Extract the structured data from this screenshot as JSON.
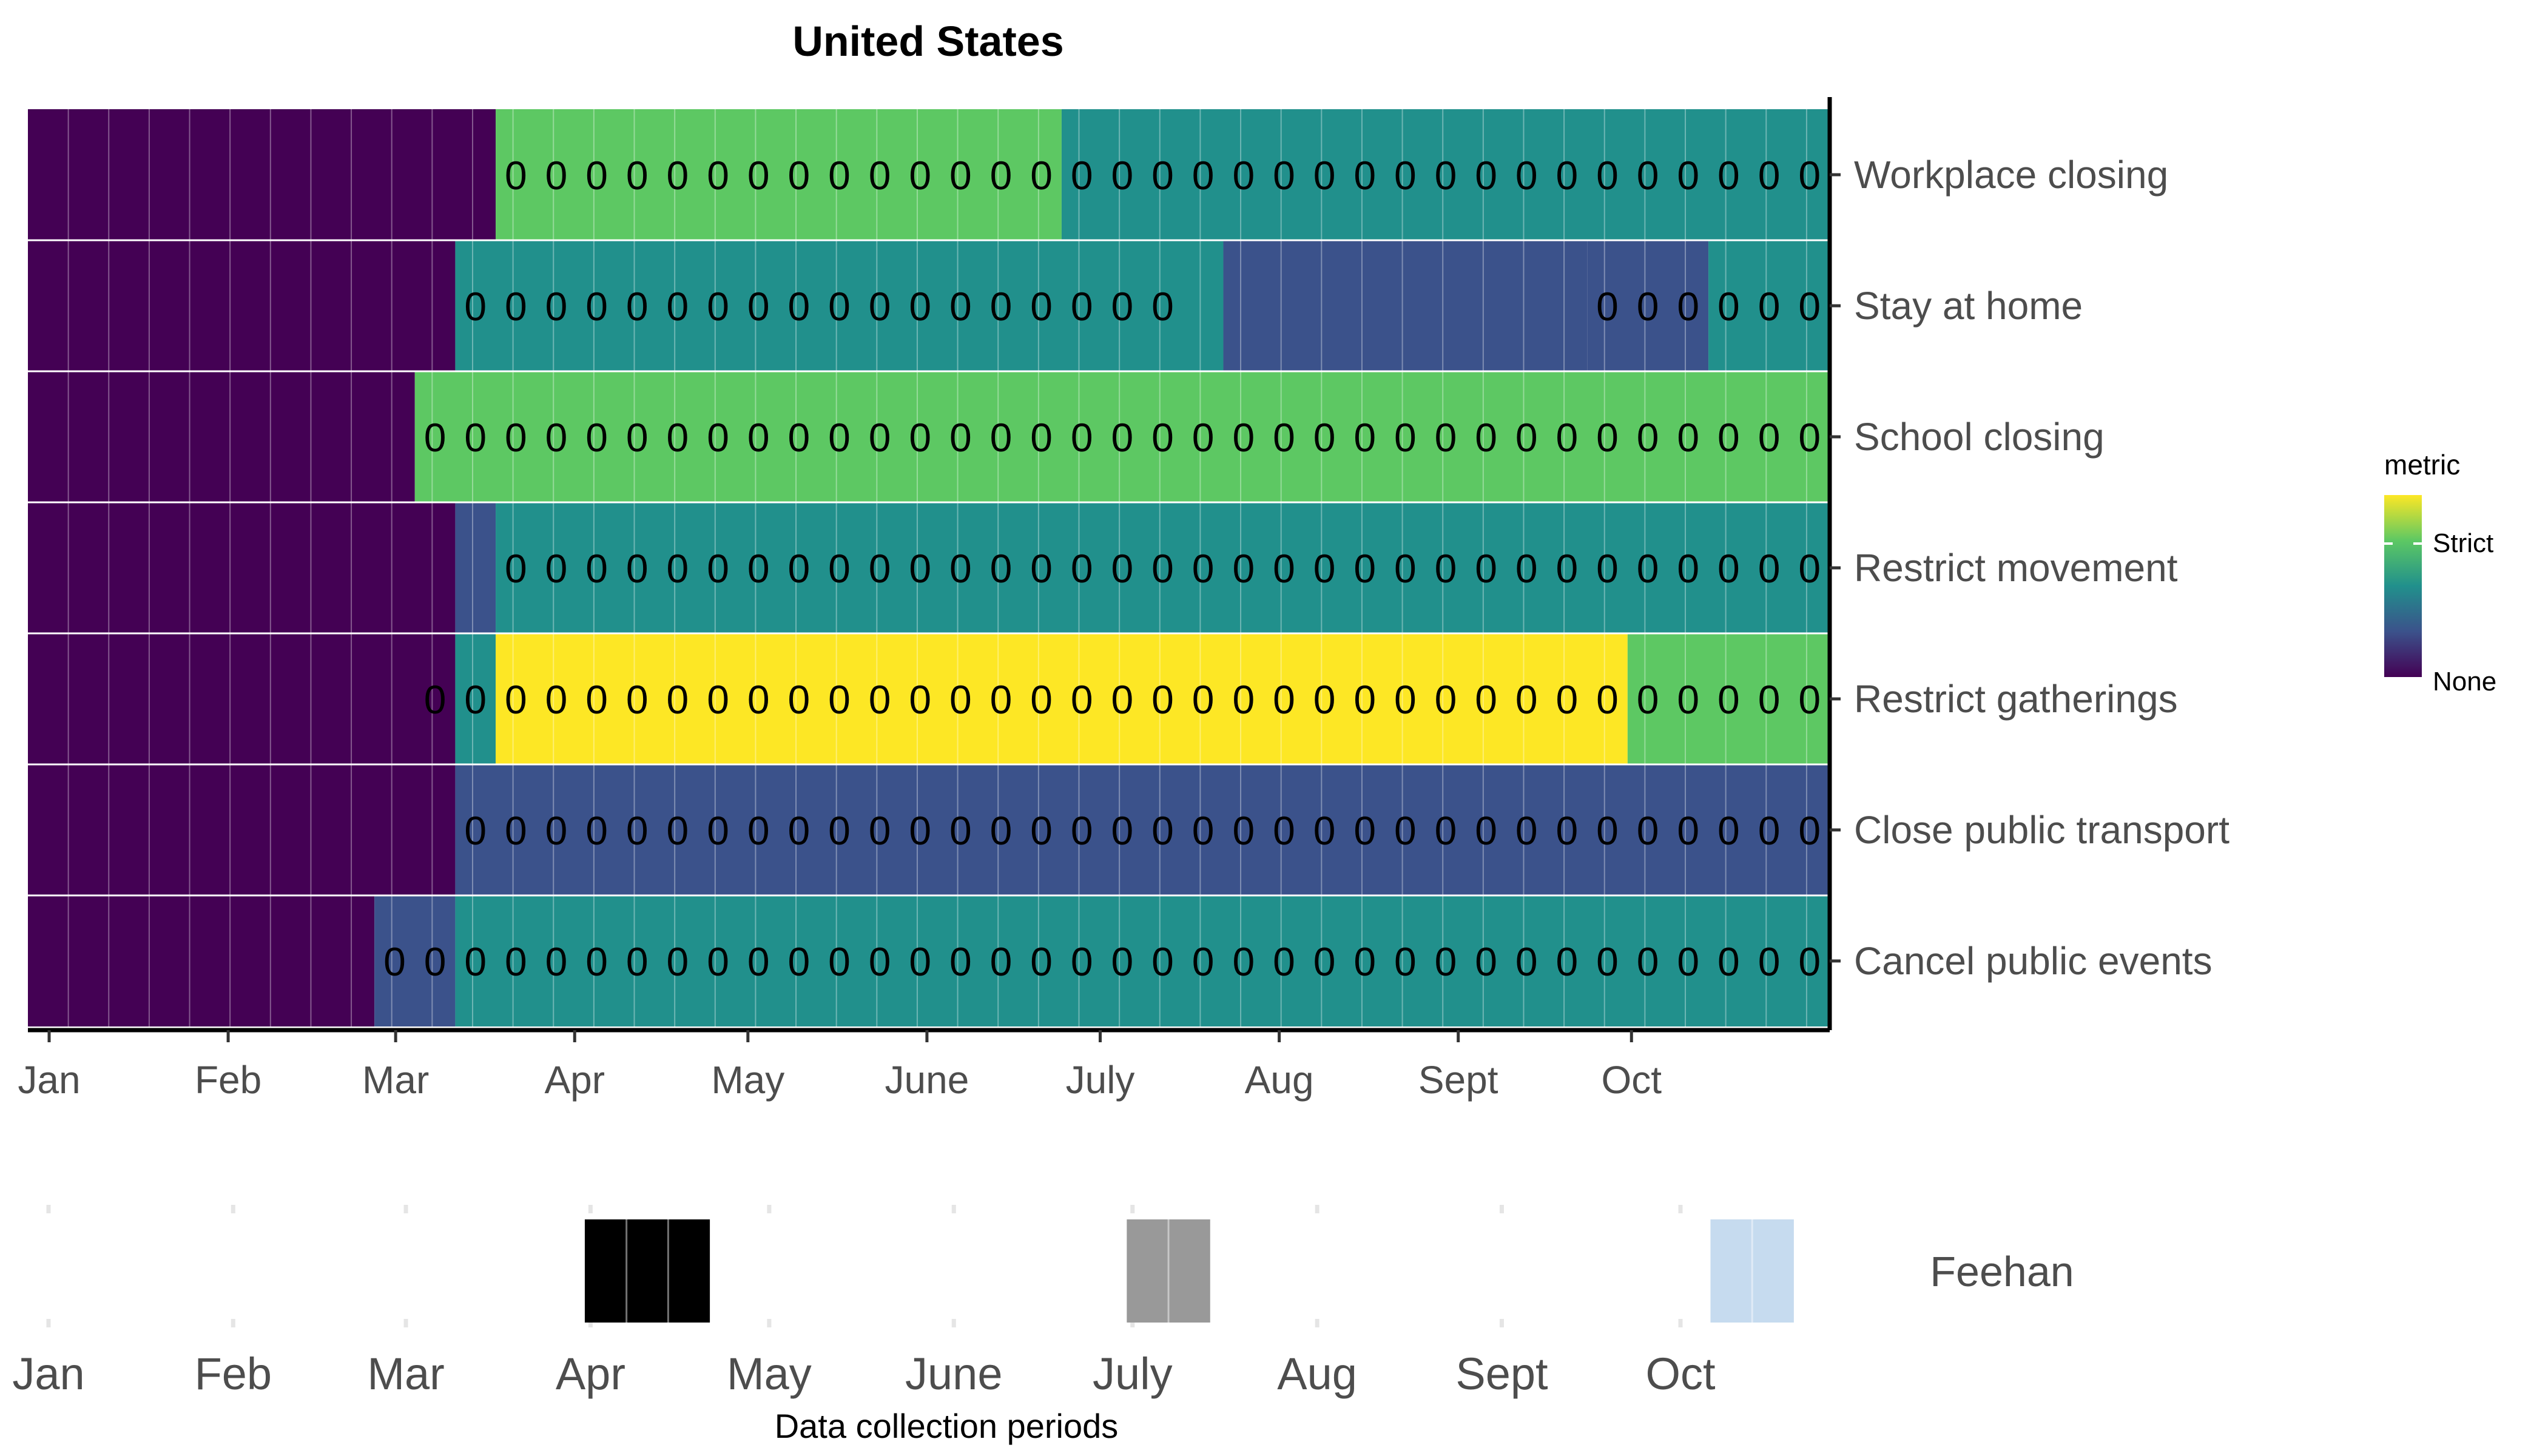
{
  "colors": {
    "palette": {
      "0": "#440154",
      "1": "#3B528B",
      "2": "#21908C",
      "3": "#5DC863",
      "4": "#FDE725"
    },
    "period_black": "#000000",
    "period_gray": "#999999",
    "period_lightblue": "#C6DBEF"
  },
  "chart_data": [
    {
      "type": "heatmap",
      "title": "United States",
      "x_unit": "week",
      "x_range": [
        "2020-01-01",
        "2020-11-08"
      ],
      "month_labels": [
        "Jan",
        "Feb",
        "Mar",
        "Apr",
        "May",
        "June",
        "July",
        "Aug",
        "Sept",
        "Oct"
      ],
      "rows": [
        {
          "name": "Workplace closing",
          "segments": [
            {
              "from": "2020-01-01",
              "to": "2020-03-22",
              "level": 0
            },
            {
              "from": "2020-03-22",
              "to": "2020-06-28",
              "level": 3
            },
            {
              "from": "2020-06-28",
              "to": "2020-11-08",
              "level": 2
            }
          ],
          "zero_labels": [
            "2020-03-29",
            "2020-11-08"
          ]
        },
        {
          "name": "Stay at home",
          "segments": [
            {
              "from": "2020-01-01",
              "to": "2020-03-15",
              "level": 0
            },
            {
              "from": "2020-03-15",
              "to": "2020-07-26",
              "level": 2
            },
            {
              "from": "2020-07-26",
              "to": "2020-09-27",
              "level": 1
            },
            {
              "from": "2020-09-27",
              "to": "2020-10-18",
              "level": 1
            },
            {
              "from": "2020-10-18",
              "to": "2020-11-08",
              "level": 2
            }
          ],
          "zero_labels": [
            "2020-03-22",
            "2020-07-19"
          ],
          "zero_labels_2": [
            "2020-10-04",
            "2020-11-08"
          ]
        },
        {
          "name": "School closing",
          "segments": [
            {
              "from": "2020-01-01",
              "to": "2020-03-08",
              "level": 0
            },
            {
              "from": "2020-03-08",
              "to": "2020-11-08",
              "level": 3
            }
          ],
          "zero_labels": [
            "2020-03-15",
            "2020-11-08"
          ]
        },
        {
          "name": "Restrict movement",
          "segments": [
            {
              "from": "2020-01-01",
              "to": "2020-03-15",
              "level": 0
            },
            {
              "from": "2020-03-15",
              "to": "2020-03-22",
              "level": 1
            },
            {
              "from": "2020-03-22",
              "to": "2020-11-08",
              "level": 2
            }
          ],
          "zero_labels": [
            "2020-03-29",
            "2020-11-08"
          ]
        },
        {
          "name": "Restrict gatherings",
          "segments": [
            {
              "from": "2020-01-01",
              "to": "2020-03-15",
              "level": 0
            },
            {
              "from": "2020-03-15",
              "to": "2020-03-22",
              "level": 2
            },
            {
              "from": "2020-03-22",
              "to": "2020-10-04",
              "level": 4
            },
            {
              "from": "2020-10-04",
              "to": "2020-11-08",
              "level": 3
            }
          ],
          "zero_labels": [
            "2020-03-15",
            "2020-11-08"
          ]
        },
        {
          "name": "Close public transport",
          "segments": [
            {
              "from": "2020-01-01",
              "to": "2020-03-15",
              "level": 0
            },
            {
              "from": "2020-03-15",
              "to": "2020-11-08",
              "level": 1
            }
          ],
          "zero_labels": [
            "2020-03-22",
            "2020-11-08"
          ]
        },
        {
          "name": "Cancel public events",
          "segments": [
            {
              "from": "2020-01-01",
              "to": "2020-03-01",
              "level": 0
            },
            {
              "from": "2020-03-01",
              "to": "2020-03-15",
              "level": 1
            },
            {
              "from": "2020-03-15",
              "to": "2020-11-08",
              "level": 2
            }
          ],
          "zero_labels": [
            "2020-03-08",
            "2020-11-08"
          ]
        }
      ],
      "cell_label": "0",
      "legend": {
        "title": "metric",
        "labels": [
          "Strict",
          "None"
        ],
        "placement": "right"
      }
    },
    {
      "type": "timeline",
      "xlabel": "Data collection periods",
      "month_labels": [
        "Jan",
        "Feb",
        "Mar",
        "Apr",
        "May",
        "June",
        "July",
        "Aug",
        "Sept",
        "Oct"
      ],
      "periods": [
        {
          "from": "2020-03-29",
          "to": "2020-04-19",
          "color": "black"
        },
        {
          "from": "2020-06-28",
          "to": "2020-07-12",
          "color": "gray"
        },
        {
          "from": "2020-10-04",
          "to": "2020-10-18",
          "color": "lightblue"
        }
      ],
      "source_label": "Feehan"
    }
  ]
}
